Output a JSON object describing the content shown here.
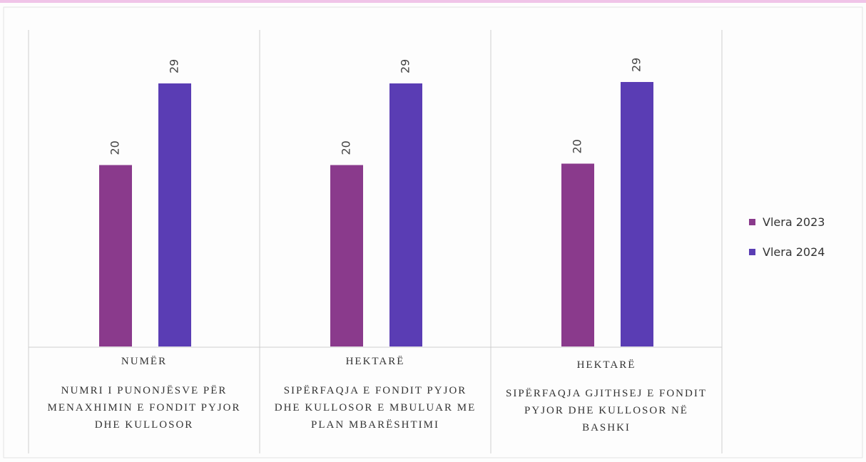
{
  "chart_data": {
    "type": "bar",
    "categories": [
      "NUMRI I PUNONJËSVE PËR MENAXHIMIN E FONDIT PYJOR DHE KULLOSOR",
      "SIPËRFAQJA E FONDIT PYJOR DHE KULLOSOR E MBULUAR ME PLAN MBARËSHTIMI",
      "SIPËRFAQJA GJITHSEJ E FONDIT PYJOR DHE KULLOSOR NË BASHKI"
    ],
    "units": [
      "NUMËR",
      "HEKTARË",
      "HEKTARË"
    ],
    "series": [
      {
        "name": "Vlera 2023",
        "color": "#8a3a8c",
        "values": [
          20,
          20,
          20
        ]
      },
      {
        "name": "Vlera 2024",
        "color": "#5a3db4",
        "values": [
          29,
          29,
          29
        ]
      }
    ],
    "legend": "right"
  }
}
